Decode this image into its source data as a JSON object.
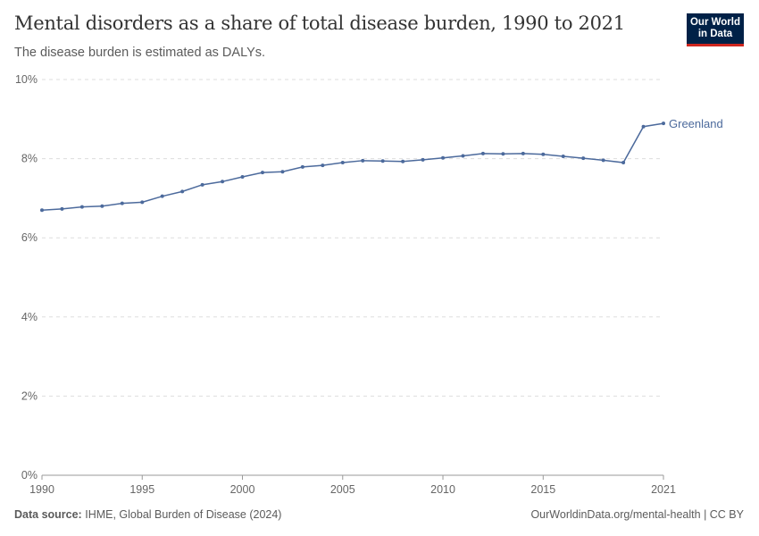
{
  "header": {
    "title": "Mental disorders as a share of total disease burden, 1990 to 2021",
    "subtitle": "The disease burden is estimated as DALYs.",
    "logo_text": "Our World in Data"
  },
  "footer": {
    "source_label": "Data source:",
    "source": "IHME, Global Burden of Disease (2024)",
    "link": "OurWorldinData.org/mental-health | CC BY"
  },
  "chart_data": {
    "type": "line",
    "title": "Mental disorders as a share of total disease burden, 1990 to 2021",
    "subtitle": "The disease burden is estimated as DALYs.",
    "xlabel": "",
    "ylabel": "",
    "ylim": [
      0,
      10
    ],
    "xlim": [
      1990,
      2021
    ],
    "y_ticks": [
      "0%",
      "2%",
      "4%",
      "6%",
      "8%",
      "10%"
    ],
    "x_ticks": [
      "1990",
      "1995",
      "2000",
      "2005",
      "2010",
      "2015",
      "2021"
    ],
    "grid": "horizontal dashed",
    "legend": "inline-right",
    "x": [
      1990,
      1991,
      1992,
      1993,
      1994,
      1995,
      1996,
      1997,
      1998,
      1999,
      2000,
      2001,
      2002,
      2003,
      2004,
      2005,
      2006,
      2007,
      2008,
      2009,
      2010,
      2011,
      2012,
      2013,
      2014,
      2015,
      2016,
      2017,
      2018,
      2019,
      2020,
      2021
    ],
    "series": [
      {
        "name": "Greenland",
        "color": "#4c6a9c",
        "values": [
          6.7,
          6.73,
          6.78,
          6.8,
          6.87,
          6.9,
          7.05,
          7.17,
          7.34,
          7.42,
          7.54,
          7.65,
          7.67,
          7.79,
          7.83,
          7.9,
          7.95,
          7.94,
          7.93,
          7.97,
          8.02,
          8.07,
          8.13,
          8.12,
          8.13,
          8.11,
          8.06,
          8.01,
          7.96,
          7.9,
          8.81,
          8.89
        ]
      }
    ]
  }
}
